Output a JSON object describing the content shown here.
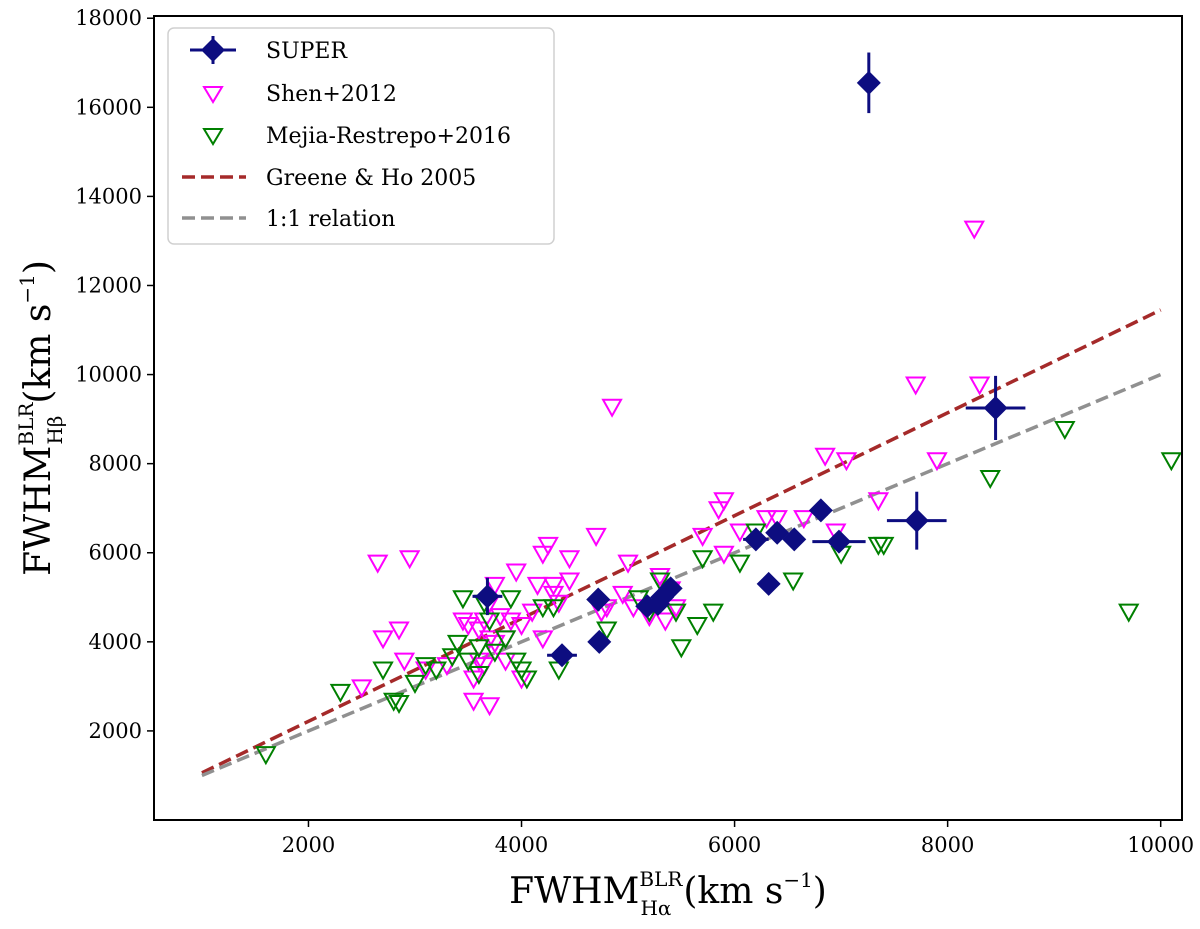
{
  "chart_data": {
    "type": "scatter",
    "xlabel": {
      "main": "FWHM",
      "sup": "BLR",
      "sub": "Hα",
      "unit": "(km s",
      "unit_exp": "−1",
      "unit_close": ")"
    },
    "ylabel": {
      "main": "FWHM",
      "sup": "BLR",
      "sub": "Hβ",
      "unit": "(km s",
      "unit_exp": "−1",
      "unit_close": ")"
    },
    "xlim": [
      550,
      10200
    ],
    "ylim": [
      0,
      18050
    ],
    "xticks": [
      2000,
      4000,
      6000,
      8000,
      10000
    ],
    "yticks": [
      2000,
      4000,
      6000,
      8000,
      10000,
      12000,
      14000,
      16000,
      18000
    ],
    "grid": false,
    "legend_position": "top-left",
    "legend": [
      {
        "label": "SUPER",
        "kind": "diamond",
        "color": "#0d0d80"
      },
      {
        "label": "Shen+2012",
        "kind": "triangle",
        "color": "#ff00ff"
      },
      {
        "label": "Mejia-Restrepo+2016",
        "kind": "triangle",
        "color": "#008000"
      },
      {
        "label": "Greene & Ho 2005",
        "kind": "dash",
        "color": "#a52a2a"
      },
      {
        "label": "1:1 relation",
        "kind": "dash",
        "color": "#909090"
      }
    ],
    "lines": [
      {
        "name": "Greene & Ho 2005",
        "color": "#a52a2a",
        "x": [
          1000,
          10000
        ],
        "y": [
          1060,
          11450
        ]
      },
      {
        "name": "1:1 relation",
        "color": "#909090",
        "x": [
          1000,
          10000
        ],
        "y": [
          1000,
          10000
        ]
      }
    ],
    "series": [
      {
        "name": "Shen+2012",
        "color": "#ff00ff",
        "x": [
          2650,
          2700,
          2850,
          2900,
          2950,
          2500,
          3100,
          3300,
          3450,
          3500,
          3550,
          3600,
          3600,
          3650,
          3700,
          3700,
          3750,
          3700,
          3800,
          3850,
          3900,
          3950,
          4000,
          4100,
          4150,
          4200,
          4200,
          4250,
          4300,
          4300,
          4350,
          4000,
          4450,
          4450,
          4700,
          4750,
          4800,
          4850,
          4950,
          5000,
          5050,
          5200,
          5300,
          5350,
          5400,
          5450,
          5700,
          5850,
          5900,
          5900,
          6050,
          6300,
          6400,
          6650,
          6850,
          6950,
          7050,
          7350,
          7700,
          7900,
          8250,
          8300,
          3850,
          3550,
          3650,
          3750
        ],
        "y": [
          5800,
          4100,
          4300,
          3600,
          5900,
          3000,
          3400,
          3500,
          4500,
          4400,
          2700,
          4300,
          3600,
          4500,
          2600,
          4100,
          5300,
          4900,
          4600,
          4100,
          4500,
          5600,
          4400,
          4700,
          5300,
          6000,
          4100,
          6200,
          5100,
          5300,
          4900,
          3200,
          5400,
          5900,
          6400,
          4700,
          4800,
          9300,
          5100,
          5800,
          4800,
          4600,
          5500,
          4500,
          5200,
          4800,
          6400,
          7000,
          6000,
          7200,
          6500,
          6800,
          6800,
          6800,
          8200,
          6500,
          8100,
          7200,
          9800,
          8100,
          13300,
          9800,
          3600,
          3200,
          3500,
          4000
        ]
      },
      {
        "name": "Mejia-Restrepo+2016",
        "color": "#008000",
        "x": [
          1600,
          2300,
          2700,
          2800,
          2850,
          3000,
          3100,
          3200,
          3400,
          3450,
          3500,
          3600,
          3600,
          3700,
          3750,
          3850,
          3900,
          3950,
          4000,
          4050,
          4200,
          4300,
          4350,
          4800,
          5100,
          5200,
          5300,
          5450,
          5500,
          5650,
          5700,
          5800,
          6050,
          6200,
          6550,
          7000,
          7350,
          7400,
          8400,
          9100,
          9700,
          10100,
          3350,
          3650
        ],
        "y": [
          1500,
          2900,
          3400,
          2700,
          2650,
          3100,
          3500,
          3400,
          4000,
          5000,
          3600,
          3900,
          3300,
          4500,
          3800,
          4100,
          5000,
          3600,
          3400,
          3200,
          4800,
          4800,
          3400,
          4300,
          5000,
          4700,
          5400,
          4700,
          3900,
          4400,
          5900,
          4700,
          5800,
          6500,
          5400,
          6000,
          6200,
          6200,
          7700,
          8800,
          4700,
          8100,
          3700,
          4900
        ]
      },
      {
        "name": "SUPER",
        "color": "#0d0d80",
        "x": [
          3680,
          4380,
          4730,
          4720,
          5180,
          5280,
          5320,
          5400,
          6200,
          6400,
          6560,
          6320,
          6810,
          6980,
          7710,
          7260,
          8450
        ],
        "y": [
          5020,
          3700,
          4000,
          4950,
          4800,
          4850,
          5000,
          5200,
          6300,
          6450,
          6300,
          5300,
          6950,
          6250,
          6720,
          16550,
          9250
        ],
        "xerr": [
          140,
          140,
          0,
          80,
          80,
          0,
          0,
          80,
          120,
          0,
          0,
          0,
          0,
          250,
          280,
          0,
          280
        ],
        "yerr": [
          420,
          0,
          0,
          0,
          0,
          0,
          0,
          0,
          0,
          0,
          0,
          0,
          0,
          0,
          650,
          680,
          720
        ]
      }
    ]
  }
}
